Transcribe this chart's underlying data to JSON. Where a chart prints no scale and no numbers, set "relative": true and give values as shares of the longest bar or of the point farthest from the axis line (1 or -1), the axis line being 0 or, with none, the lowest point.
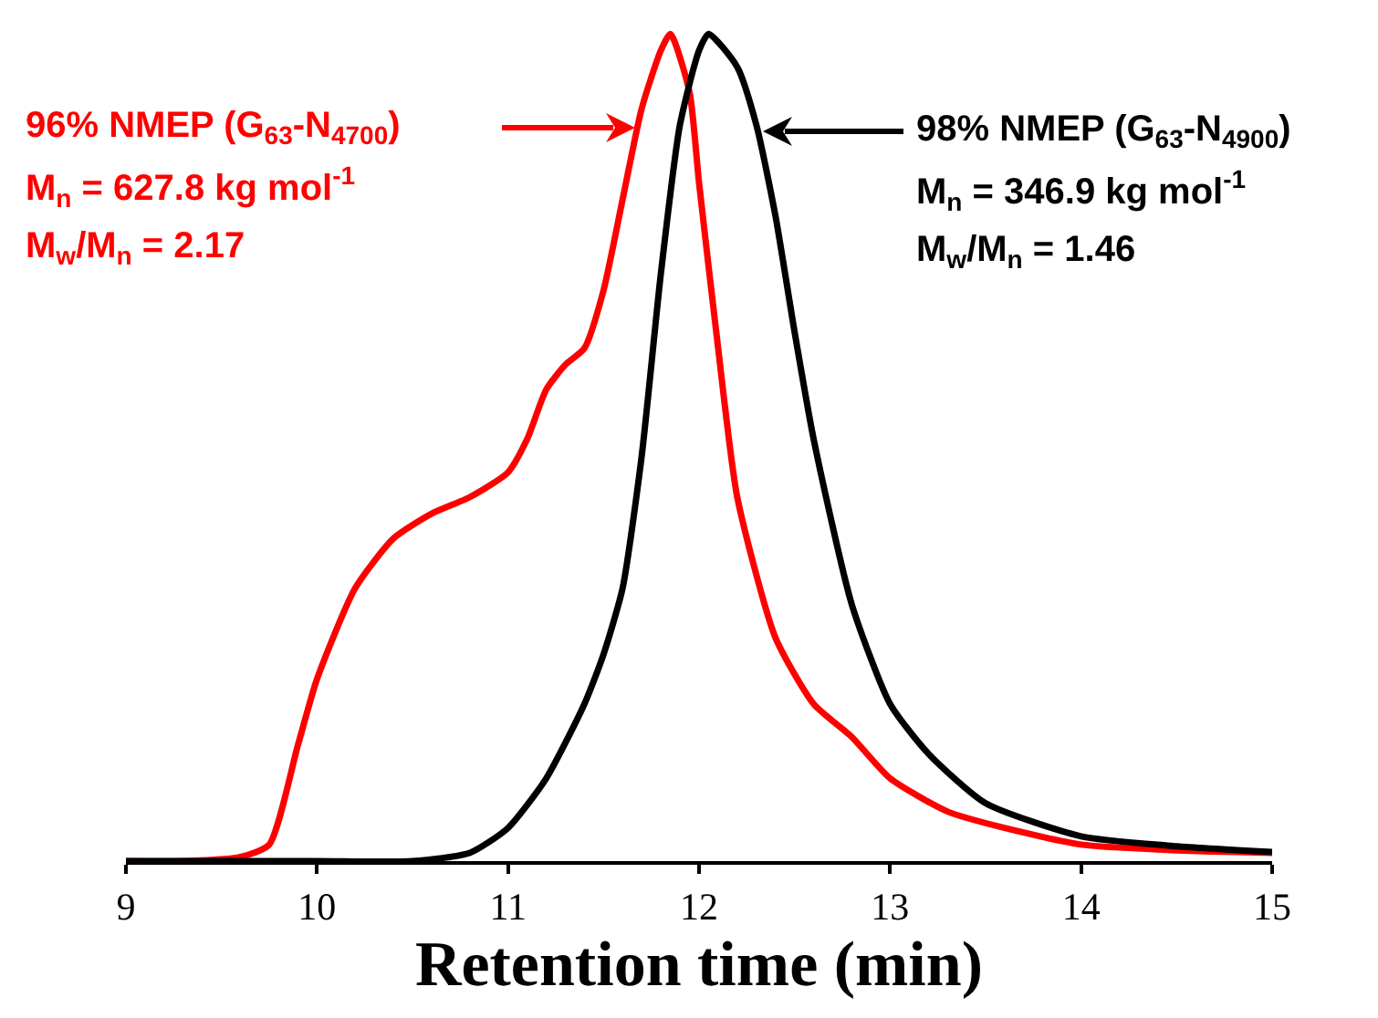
{
  "chart_data": {
    "type": "line",
    "relative": true,
    "xlabel": "Retention time (min)",
    "xlim": [
      9,
      15
    ],
    "xticks": [
      9,
      10,
      11,
      12,
      13,
      14,
      15
    ],
    "grid": false,
    "marker": "none",
    "line_style": "solid",
    "series": [
      {
        "color": "#ff0000",
        "x": [
          9,
          9.3,
          9.6,
          9.75,
          9.9,
          10,
          10.2,
          10.4,
          10.6,
          10.8,
          11,
          11.1,
          11.2,
          11.3,
          11.4,
          11.5,
          11.6,
          11.7,
          11.8,
          11.85,
          11.95,
          12,
          12.1,
          12.2,
          12.4,
          12.6,
          12.8,
          13,
          13.3,
          13.6,
          14,
          14.5,
          15
        ],
        "values": [
          0,
          0,
          0.005,
          0.02,
          0.14,
          0.22,
          0.33,
          0.39,
          0.42,
          0.44,
          0.47,
          0.51,
          0.57,
          0.6,
          0.62,
          0.69,
          0.8,
          0.91,
          0.98,
          1,
          0.93,
          0.82,
          0.62,
          0.44,
          0.27,
          0.19,
          0.15,
          0.1,
          0.06,
          0.04,
          0.02,
          0.013,
          0.01
        ]
      },
      {
        "color": "#000000",
        "x": [
          9,
          10,
          10.5,
          10.8,
          11,
          11.2,
          11.4,
          11.5,
          11.6,
          11.7,
          11.8,
          11.9,
          12,
          12.05,
          12.2,
          12.3,
          12.4,
          12.5,
          12.6,
          12.8,
          13,
          13.2,
          13.5,
          14,
          14.5,
          15
        ],
        "values": [
          0,
          0,
          0,
          0.01,
          0.04,
          0.1,
          0.19,
          0.25,
          0.33,
          0.49,
          0.71,
          0.89,
          0.98,
          1,
          0.96,
          0.89,
          0.78,
          0.64,
          0.51,
          0.31,
          0.19,
          0.13,
          0.07,
          0.03,
          0.018,
          0.011
        ]
      }
    ],
    "annotations": [
      "96% NMEP (G$_{63}$-N$_{4700}$)",
      "M$_{n}$ = 627.8 kg mol$^{-1}$",
      "M$_{w}$/M$_{n}$ = 2.17",
      "98% NMEP (G$_{63}$-N$_{4900}$)",
      "M$_{n}$ = 346.9 kg mol$^{-1}$",
      "M$_{w}$/M$_{n}$ = 1.46"
    ]
  }
}
